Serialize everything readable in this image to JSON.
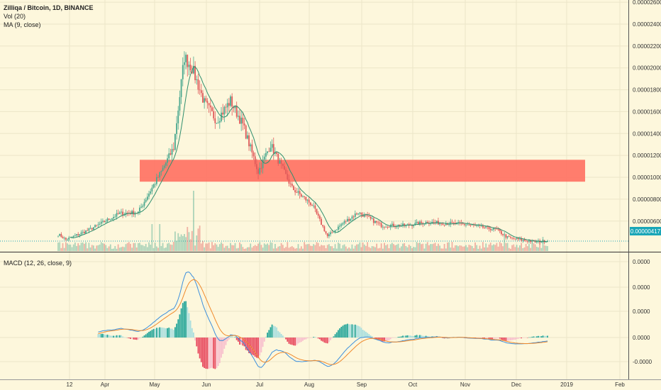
{
  "colors": {
    "background": "#fdf7dc",
    "up": "#4aa88f",
    "down": "#e05a5a",
    "ma": "#2f8f6e",
    "zone": "#ff6f61",
    "macd_line": "#3c8fdd",
    "signal_line": "#f08a2c",
    "hist_pos_strong": "#26a69a",
    "hist_pos_weak": "#a8dede",
    "hist_neg_strong": "#e84a5f",
    "hist_neg_weak": "#f8bfcd",
    "last_price": "#1aa6b7"
  },
  "legend": {
    "title": "Zilliqa / Bitcoin, 1D, BINANCE",
    "vol": "Vol (20)",
    "ma": "MA (9, close)",
    "macd": "MACD (12, 26, close, 9)"
  },
  "chart_data": [
    {
      "type": "candlestick",
      "title": "Zilliqa / Bitcoin, 1D, BINANCE",
      "indicators": [
        "Vol (20)",
        "MA (9, close)"
      ],
      "x_ticks": [
        "12",
        "Apr",
        "May",
        "Jun",
        "Jul",
        "Aug",
        "Sep",
        "Oct",
        "Nov",
        "Dec",
        "2019",
        "Feb"
      ],
      "y_ticks": [
        "0.00002600",
        "0.00002400",
        "0.00002200",
        "0.00002000",
        "0.00001800",
        "0.00001600",
        "0.00001400",
        "0.00001200",
        "0.00001000",
        "0.00000800",
        "0.00000600"
      ],
      "y_range": [
        3.2e-06,
        2.62e-05
      ],
      "last_price": "0.00000417",
      "highlight_zone": [
        9.6e-06,
        1.16e-05
      ],
      "close_keypoints": [
        {
          "day": 0,
          "close": 4.8e-06
        },
        {
          "day": 5,
          "close": 4.3e-06
        },
        {
          "day": 20,
          "close": 5.2e-06
        },
        {
          "day": 40,
          "close": 6.7e-06
        },
        {
          "day": 52,
          "close": 6.8e-06
        },
        {
          "day": 60,
          "close": 8.8e-06
        },
        {
          "day": 67,
          "close": 1.05e-05
        },
        {
          "day": 75,
          "close": 1.27e-05
        },
        {
          "day": 82,
          "close": 2.1e-05
        },
        {
          "day": 87,
          "close": 2e-05
        },
        {
          "day": 95,
          "close": 1.68e-05
        },
        {
          "day": 103,
          "close": 1.52e-05
        },
        {
          "day": 112,
          "close": 1.7e-05
        },
        {
          "day": 120,
          "close": 1.48e-05
        },
        {
          "day": 130,
          "close": 1.05e-05
        },
        {
          "day": 138,
          "close": 1.3e-05
        },
        {
          "day": 145,
          "close": 1.1e-05
        },
        {
          "day": 152,
          "close": 9e-06
        },
        {
          "day": 165,
          "close": 7.5e-06
        },
        {
          "day": 175,
          "close": 4.6e-06
        },
        {
          "day": 185,
          "close": 5.8e-06
        },
        {
          "day": 195,
          "close": 6.8e-06
        },
        {
          "day": 210,
          "close": 5.6e-06
        },
        {
          "day": 225,
          "close": 5.6e-06
        },
        {
          "day": 240,
          "close": 5.9e-06
        },
        {
          "day": 265,
          "close": 5.7e-06
        },
        {
          "day": 285,
          "close": 5.2e-06
        },
        {
          "day": 292,
          "close": 4.5e-06
        },
        {
          "day": 300,
          "close": 4.3e-06
        },
        {
          "day": 310,
          "close": 4.1e-06
        },
        {
          "day": 318,
          "close": 4.2e-06
        }
      ]
    },
    {
      "type": "line",
      "title": "MACD (12, 26, close, 9)",
      "y_ticks": [
        "0.0000",
        "0.0000",
        "0.0000",
        "0.0000",
        "-0.0000"
      ],
      "series": [
        {
          "name": "MACD"
        },
        {
          "name": "Signal"
        },
        {
          "name": "Histogram"
        }
      ]
    }
  ]
}
